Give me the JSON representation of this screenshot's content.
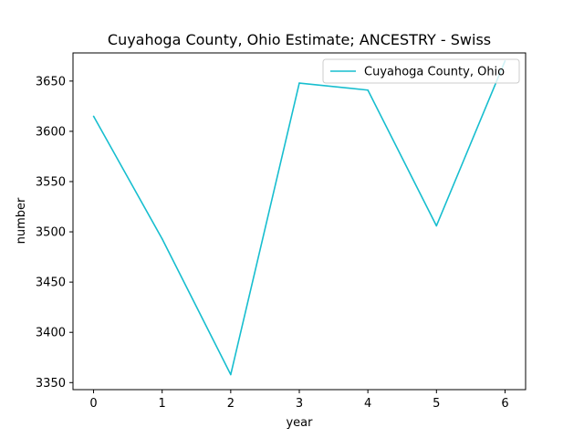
{
  "chart_data": {
    "type": "line",
    "title": "Cuyahoga County, Ohio Estimate; ANCESTRY - Swiss",
    "xlabel": "year",
    "ylabel": "number",
    "x": [
      0,
      1,
      2,
      3,
      4,
      5,
      6
    ],
    "xticks": [
      "0",
      "1",
      "2",
      "3",
      "4",
      "5",
      "6"
    ],
    "yticks": [
      3350,
      3400,
      3450,
      3500,
      3550,
      3600,
      3650
    ],
    "xlim": [
      -0.3,
      6.3
    ],
    "ylim": [
      3343,
      3678
    ],
    "grid": false,
    "legend_position": "top-right",
    "series": [
      {
        "name": "Cuyahoga County, Ohio",
        "color": "#17becf",
        "values": [
          3615,
          3493,
          3358,
          3648,
          3641,
          3506,
          3670
        ]
      }
    ]
  }
}
